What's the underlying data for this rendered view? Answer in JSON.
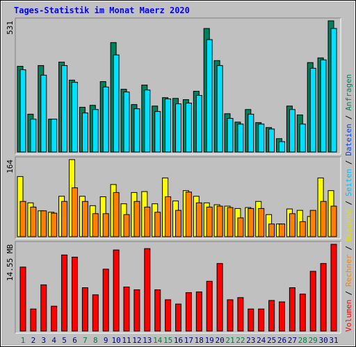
{
  "title": "Tages-Statistik im Monat Maerz 2020",
  "categories": [
    "1",
    "2",
    "3",
    "4",
    "5",
    "6",
    "7",
    "8",
    "9",
    "10",
    "11",
    "12",
    "13",
    "14",
    "15",
    "16",
    "17",
    "18",
    "19",
    "20",
    "21",
    "22",
    "23",
    "24",
    "25",
    "26",
    "27",
    "28",
    "29",
    "30",
    "31"
  ],
  "label_colors": [
    "#008040",
    "#000080",
    "#000080",
    "#000080",
    "#000080",
    "#000080",
    "#008040",
    "#008040",
    "#000080",
    "#000080",
    "#000080",
    "#000080",
    "#000080",
    "#008040",
    "#008040",
    "#000080",
    "#000080",
    "#000080",
    "#000080",
    "#000080",
    "#008040",
    "#008040",
    "#000080",
    "#000080",
    "#000080",
    "#000080",
    "#000080",
    "#008040",
    "#008040",
    "#000080",
    "#000080"
  ],
  "legend": [
    {
      "name": "Volumen",
      "color": "#ff0000"
    },
    {
      "name": "Rechner",
      "color": "#ff8000"
    },
    {
      "name": "Besuche",
      "color": "#e0e000"
    },
    {
      "name": "Seiten",
      "color": "#00c0ff"
    },
    {
      "name": "Dateien",
      "color": "#0040ff"
    },
    {
      "name": "Anfragen",
      "color": "#00805c"
    }
  ],
  "legend_separator": "/",
  "chart_data": [
    {
      "type": "bar",
      "ylim": [
        0,
        531
      ],
      "yticks": [
        531
      ],
      "series": [
        {
          "color": "#00805c",
          "values": [
            347,
            153,
            350,
            133,
            364,
            291,
            181,
            189,
            285,
            443,
            254,
            192,
            271,
            186,
            220,
            217,
            212,
            246,
            500,
            370,
            155,
            121,
            172,
            119,
            99,
            54,
            186,
            150,
            362,
            381,
            531
          ]
        },
        {
          "color": "#00e0ff",
          "values": [
            333,
            133,
            311,
            133,
            350,
            282,
            158,
            172,
            263,
            393,
            243,
            175,
            251,
            164,
            215,
            195,
            198,
            229,
            455,
            350,
            136,
            113,
            153,
            113,
            93,
            42,
            172,
            113,
            339,
            373,
            500
          ]
        }
      ]
    },
    {
      "type": "bar",
      "ylim": [
        0,
        164
      ],
      "yticks": [
        164
      ],
      "series": [
        {
          "color": "#ffff00",
          "values": [
            128,
            72,
            55,
            52,
            86,
            164,
            86,
            66,
            85,
            111,
            70,
            94,
            96,
            70,
            125,
            76,
            98,
            86,
            72,
            68,
            65,
            60,
            62,
            75,
            47,
            27,
            59,
            56,
            43,
            125,
            98
          ]
        },
        {
          "color": "#ff8000",
          "values": [
            75,
            63,
            55,
            50,
            75,
            104,
            75,
            49,
            49,
            94,
            47,
            75,
            63,
            52,
            85,
            56,
            95,
            72,
            63,
            65,
            62,
            40,
            60,
            60,
            27,
            27,
            49,
            32,
            56,
            75,
            65
          ]
        }
      ]
    },
    {
      "type": "bar",
      "ylim": [
        0,
        14.55
      ],
      "yticks": [
        {
          "value": 14.55,
          "label": "14.55 MB"
        }
      ],
      "series": [
        {
          "color": "#ff0000",
          "values": [
            10.73,
            3.7,
            7.75,
            4.17,
            12.76,
            12.4,
            7.27,
            6.08,
            10.38,
            13.6,
            7.39,
            6.92,
            13.83,
            6.92,
            5.25,
            4.53,
            6.44,
            6.56,
            8.35,
            11.33,
            5.25,
            5.61,
            3.7,
            3.7,
            5.13,
            4.89,
            7.27,
            6.2,
            10.02,
            11.33,
            14.55
          ]
        }
      ]
    }
  ]
}
